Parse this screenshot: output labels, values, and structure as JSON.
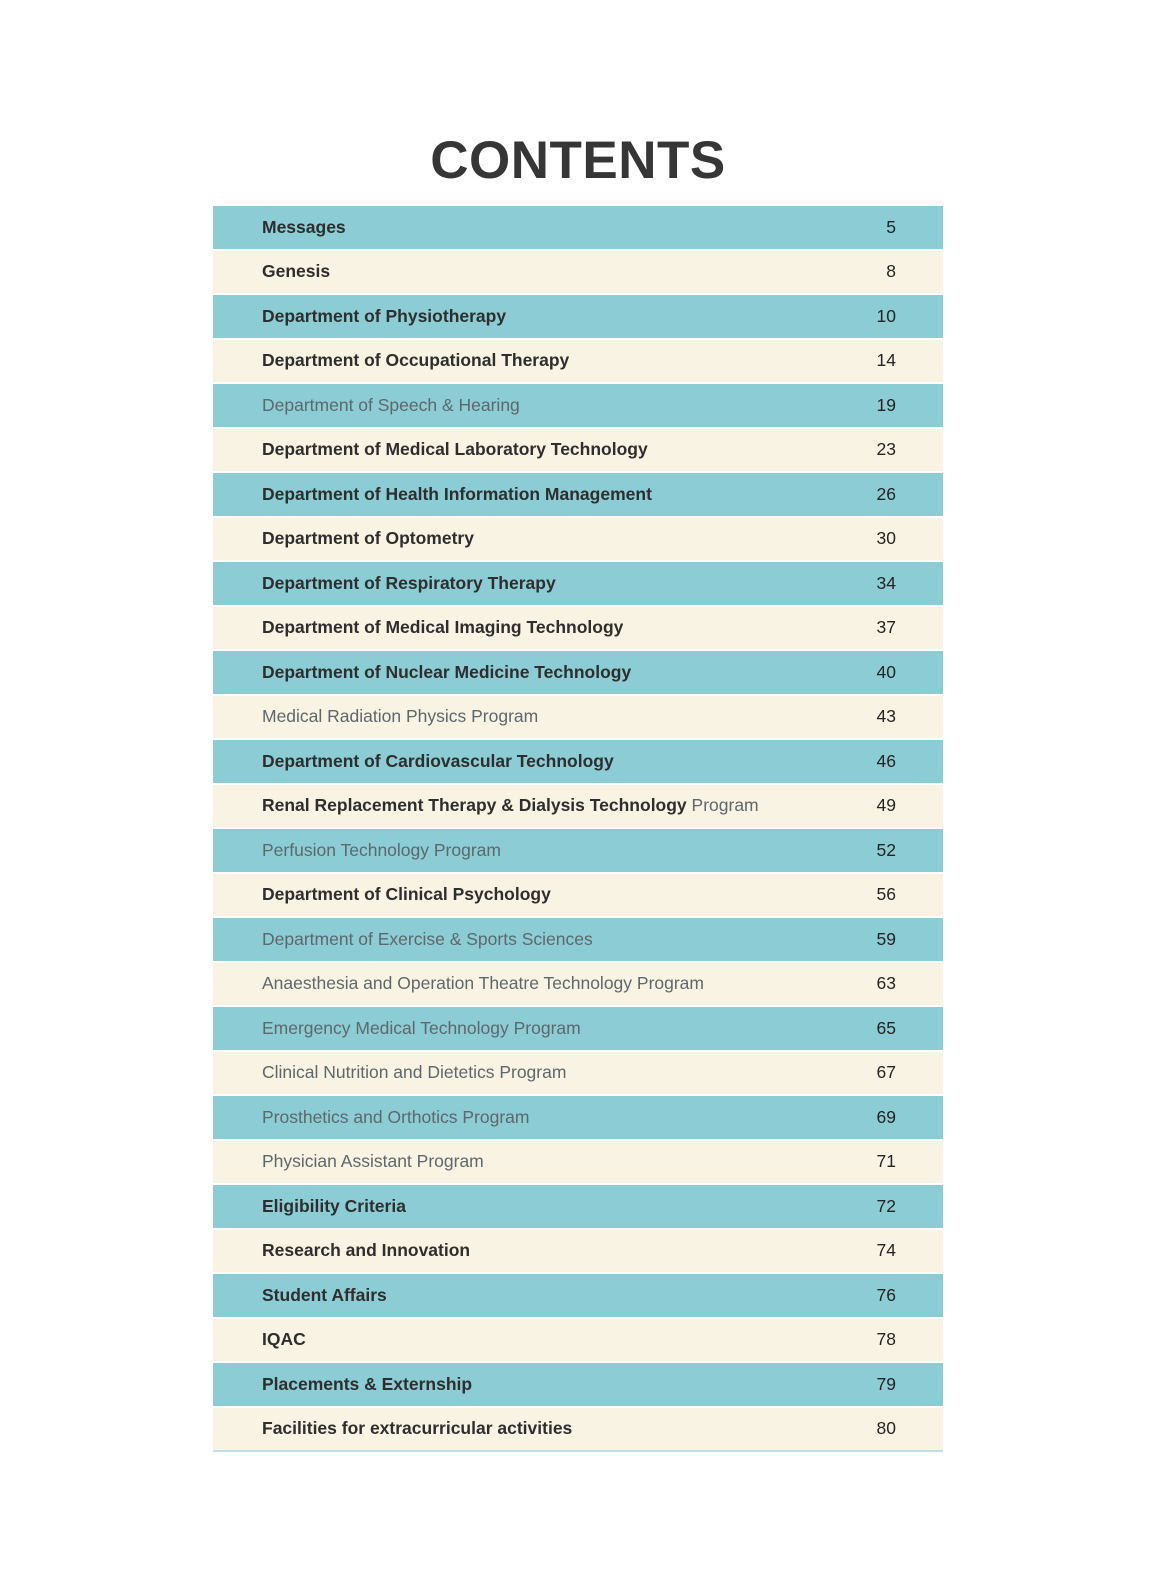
{
  "page": {
    "title": "CONTENTS"
  },
  "colors": {
    "row_teal": "#8bccd5",
    "row_cream": "#f8f3e2",
    "text_dark": "#2e2e2e",
    "text_muted": "#5e686c",
    "table_bottom_border": "#bfe0e6",
    "page_background": "#ffffff"
  },
  "toc": {
    "entries": [
      {
        "title": "Messages",
        "suffix": "",
        "page": "5",
        "muted": false
      },
      {
        "title": "Genesis",
        "suffix": "",
        "page": "8",
        "muted": false
      },
      {
        "title": "Department of Physiotherapy",
        "suffix": "",
        "page": "10",
        "muted": false
      },
      {
        "title": "Department of Occupational Therapy",
        "suffix": "",
        "page": "14",
        "muted": false
      },
      {
        "title": "Department of Speech & Hearing",
        "suffix": "",
        "page": "19",
        "muted": true
      },
      {
        "title": "Department of Medical Laboratory Technology",
        "suffix": "",
        "page": "23",
        "muted": false
      },
      {
        "title": "Department of Health Information Management",
        "suffix": "",
        "page": "26",
        "muted": false
      },
      {
        "title": "Department of Optometry",
        "suffix": "",
        "page": "30",
        "muted": false
      },
      {
        "title": "Department of Respiratory Therapy",
        "suffix": "",
        "page": "34",
        "muted": false
      },
      {
        "title": "Department of Medical Imaging Technology",
        "suffix": "",
        "page": "37",
        "muted": false
      },
      {
        "title": "Department of Nuclear Medicine Technology",
        "suffix": "",
        "page": "40",
        "muted": false
      },
      {
        "title": "Medical Radiation Physics Program",
        "suffix": "",
        "page": "43",
        "muted": true
      },
      {
        "title": "Department of Cardiovascular Technology",
        "suffix": "",
        "page": "46",
        "muted": false
      },
      {
        "title": "Renal Replacement Therapy & Dialysis Technology",
        "suffix": " Program",
        "page": "49",
        "muted": false
      },
      {
        "title": "Perfusion Technology Program",
        "suffix": "",
        "page": "52",
        "muted": true
      },
      {
        "title": "Department of Clinical Psychology",
        "suffix": "",
        "page": "56",
        "muted": false
      },
      {
        "title": "Department of Exercise & Sports Sciences",
        "suffix": "",
        "page": "59",
        "muted": true
      },
      {
        "title": "Anaesthesia and Operation Theatre Technology Program",
        "suffix": "",
        "page": "63",
        "muted": true
      },
      {
        "title": "Emergency Medical Technology Program",
        "suffix": "",
        "page": "65",
        "muted": true
      },
      {
        "title": "Clinical Nutrition and Dietetics Program",
        "suffix": "",
        "page": "67",
        "muted": true
      },
      {
        "title": "Prosthetics and Orthotics Program",
        "suffix": "",
        "page": "69",
        "muted": true
      },
      {
        "title": "Physician Assistant Program",
        "suffix": "",
        "page": "71",
        "muted": true
      },
      {
        "title": "Eligibility Criteria",
        "suffix": "",
        "page": "72",
        "muted": false
      },
      {
        "title": "Research and Innovation",
        "suffix": "",
        "page": "74",
        "muted": false
      },
      {
        "title": "Student Affairs",
        "suffix": "",
        "page": "76",
        "muted": false
      },
      {
        "title": "IQAC",
        "suffix": "",
        "page": "78",
        "muted": false
      },
      {
        "title": "Placements & Externship",
        "suffix": "",
        "page": "79",
        "muted": false
      },
      {
        "title": "Facilities for extracurricular activities",
        "suffix": "",
        "page": "80",
        "muted": false
      }
    ]
  }
}
